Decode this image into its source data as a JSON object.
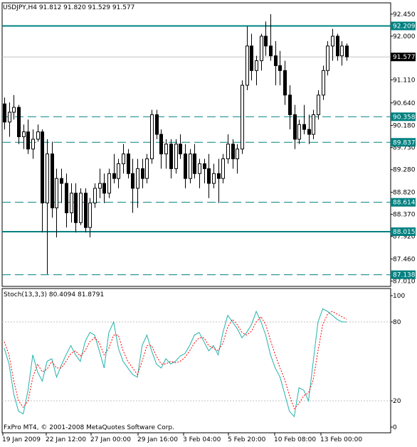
{
  "header": {
    "symbol_line": "USDJPY,H4  91.812 91.820 91.529 91.577"
  },
  "stoch_header": "Stoch(13,3,3) 80.4094 81.8791",
  "copyright": "FxPro MT4, © 2001-2008 MetaQuotes Software Corp.",
  "colors": {
    "background": "#ffffff",
    "frame": "#000000",
    "level_line": "#008080",
    "price_tag_bg": "#008080",
    "current_price_bg": "#000000",
    "current_line": "#c0c0c0",
    "stoch_main": "#20b2aa",
    "stoch_signal": "#ff0000",
    "stoch_level": "#c0c0c0"
  },
  "chart_data": [
    {
      "type": "candlestick",
      "title": "USDJPY,H4",
      "ohlc_header": {
        "open": 91.812,
        "high": 91.82,
        "low": 91.529,
        "close": 91.577
      },
      "ylim": [
        86.9,
        92.68
      ],
      "yticks": [
        "92.450",
        "92.000",
        "91.110",
        "90.640",
        "90.180",
        "89.730",
        "89.280",
        "88.820",
        "88.370",
        "87.920",
        "87.460",
        "87.010"
      ],
      "x_labels": [
        "19 Jan 2009",
        "22 Jan 12:00",
        "27 Jan 00:00",
        "29 Jan 16:00",
        "3 Feb 04:00",
        "5 Feb 20:00",
        "10 Feb 08:00",
        "13 Feb 00:00"
      ],
      "current_price": {
        "value": 91.577,
        "label": "91.577"
      },
      "levels": [
        {
          "value": 92.209,
          "label": "92.209",
          "style": "solid"
        },
        {
          "value": 90.358,
          "label": "90.358",
          "style": "dashed"
        },
        {
          "value": 89.837,
          "label": "89.837",
          "style": "dashed"
        },
        {
          "value": 88.614,
          "label": "88.614",
          "style": "dashed"
        },
        {
          "value": 88.015,
          "label": "88.015",
          "style": "solid"
        },
        {
          "value": 87.138,
          "label": "87.138",
          "style": "dashed"
        }
      ],
      "candles": [
        [
          90.62,
          90.75,
          90.1,
          90.25
        ],
        [
          90.25,
          90.65,
          89.95,
          90.45
        ],
        [
          90.45,
          90.8,
          90.3,
          90.55
        ],
        [
          90.55,
          90.6,
          89.8,
          89.95
        ],
        [
          89.95,
          90.2,
          89.7,
          90.05
        ],
        [
          90.05,
          90.3,
          89.6,
          89.7
        ],
        [
          89.7,
          90.1,
          89.5,
          89.9
        ],
        [
          89.9,
          90.2,
          89.85,
          90.05
        ],
        [
          90.05,
          90.1,
          88.0,
          88.6
        ],
        [
          88.6,
          89.9,
          87.15,
          89.6
        ],
        [
          89.6,
          89.85,
          88.3,
          88.5
        ],
        [
          88.5,
          89.3,
          87.9,
          89.1
        ],
        [
          89.1,
          89.3,
          88.6,
          89.0
        ],
        [
          89.0,
          89.2,
          88.1,
          88.4
        ],
        [
          88.4,
          89.0,
          88.2,
          88.8
        ],
        [
          88.8,
          89.0,
          88.0,
          88.2
        ],
        [
          88.2,
          88.9,
          88.15,
          88.8
        ],
        [
          88.8,
          88.9,
          88.0,
          88.1
        ],
        [
          88.1,
          88.7,
          87.9,
          88.6
        ],
        [
          88.6,
          89.0,
          88.5,
          88.9
        ],
        [
          88.9,
          89.3,
          88.7,
          89.0
        ],
        [
          89.0,
          89.2,
          88.6,
          88.8
        ],
        [
          88.8,
          89.3,
          88.7,
          89.2
        ],
        [
          89.2,
          89.6,
          89.0,
          89.1
        ],
        [
          89.1,
          89.5,
          88.9,
          89.4
        ],
        [
          89.4,
          89.8,
          89.2,
          89.6
        ],
        [
          89.6,
          89.7,
          89.1,
          89.2
        ],
        [
          89.2,
          89.5,
          88.4,
          88.9
        ],
        [
          88.9,
          89.5,
          88.5,
          89.3
        ],
        [
          89.3,
          89.5,
          88.9,
          89.1
        ],
        [
          89.1,
          89.6,
          89.0,
          89.5
        ],
        [
          89.5,
          90.5,
          89.4,
          90.4
        ],
        [
          90.4,
          90.5,
          89.9,
          90.0
        ],
        [
          90.0,
          90.1,
          89.3,
          89.6
        ],
        [
          89.6,
          89.9,
          89.3,
          89.8
        ],
        [
          89.8,
          89.9,
          89.1,
          89.3
        ],
        [
          89.3,
          89.9,
          89.2,
          89.8
        ],
        [
          89.8,
          90.0,
          89.5,
          89.6
        ],
        [
          89.6,
          89.8,
          88.9,
          89.1
        ],
        [
          89.1,
          89.7,
          89.0,
          89.6
        ],
        [
          89.6,
          89.8,
          89.1,
          89.2
        ],
        [
          89.2,
          89.5,
          88.9,
          89.4
        ],
        [
          89.4,
          89.5,
          89.0,
          89.3
        ],
        [
          89.3,
          89.6,
          88.7,
          89.0
        ],
        [
          89.0,
          89.4,
          88.9,
          89.2
        ],
        [
          89.2,
          89.5,
          88.6,
          89.1
        ],
        [
          89.1,
          89.6,
          89.0,
          89.5
        ],
        [
          89.5,
          90.0,
          89.4,
          89.8
        ],
        [
          89.8,
          89.9,
          89.3,
          89.5
        ],
        [
          89.5,
          89.8,
          89.2,
          89.7
        ],
        [
          89.7,
          91.1,
          89.6,
          91.0
        ],
        [
          91.0,
          92.2,
          90.9,
          91.8
        ],
        [
          91.8,
          92.05,
          91.1,
          91.3
        ],
        [
          91.3,
          91.6,
          91.0,
          91.5
        ],
        [
          91.5,
          92.05,
          91.3,
          92.0
        ],
        [
          92.0,
          92.3,
          91.6,
          91.8
        ],
        [
          91.8,
          92.45,
          91.5,
          91.6
        ],
        [
          91.6,
          91.9,
          91.0,
          91.4
        ],
        [
          91.4,
          91.7,
          91.0,
          91.3
        ],
        [
          91.3,
          91.5,
          90.6,
          90.8
        ],
        [
          90.8,
          91.0,
          90.1,
          90.4
        ],
        [
          90.4,
          90.6,
          89.7,
          89.9
        ],
        [
          89.9,
          90.3,
          89.8,
          90.2
        ],
        [
          90.2,
          90.6,
          90.0,
          90.1
        ],
        [
          90.1,
          90.4,
          89.8,
          90.0
        ],
        [
          90.0,
          90.5,
          89.9,
          90.4
        ],
        [
          90.4,
          90.9,
          90.3,
          90.8
        ],
        [
          90.8,
          91.4,
          90.7,
          91.3
        ],
        [
          91.3,
          91.9,
          91.2,
          91.8
        ],
        [
          91.8,
          92.15,
          91.5,
          92.0
        ],
        [
          92.0,
          92.05,
          91.5,
          91.6
        ],
        [
          91.6,
          91.9,
          91.4,
          91.8
        ],
        [
          91.8,
          91.85,
          91.5,
          91.58
        ]
      ]
    },
    {
      "type": "line",
      "title": "Stoch(13,3,3)",
      "ylim": [
        0,
        100
      ],
      "yticks": [
        "100",
        "80",
        "20",
        "0"
      ],
      "levels": [
        80,
        20
      ],
      "series": [
        {
          "name": "Stoch main",
          "values": [
            60,
            48,
            25,
            12,
            10,
            28,
            55,
            42,
            35,
            50,
            52,
            38,
            47,
            55,
            62,
            55,
            50,
            65,
            72,
            70,
            58,
            45,
            72,
            80,
            60,
            50,
            45,
            40,
            38,
            62,
            70,
            58,
            48,
            45,
            52,
            48,
            50,
            54,
            56,
            62,
            70,
            72,
            65,
            58,
            62,
            55,
            72,
            85,
            80,
            75,
            68,
            72,
            78,
            88,
            80,
            70,
            55,
            45,
            38,
            25,
            12,
            8,
            30,
            28,
            20,
            50,
            80,
            90,
            88,
            85,
            82,
            80,
            80
          ]
        },
        {
          "name": "Stoch signal",
          "values": [
            65,
            55,
            35,
            20,
            15,
            20,
            38,
            48,
            42,
            44,
            50,
            45,
            45,
            50,
            56,
            58,
            54,
            58,
            65,
            68,
            64,
            55,
            60,
            70,
            70,
            58,
            50,
            45,
            40,
            50,
            62,
            62,
            54,
            48,
            48,
            50,
            49,
            50,
            53,
            58,
            64,
            68,
            68,
            62,
            60,
            58,
            64,
            76,
            82,
            78,
            72,
            70,
            73,
            80,
            84,
            78,
            66,
            55,
            45,
            36,
            24,
            14,
            18,
            24,
            26,
            36,
            58,
            78,
            86,
            88,
            86,
            84,
            82
          ]
        }
      ]
    }
  ]
}
